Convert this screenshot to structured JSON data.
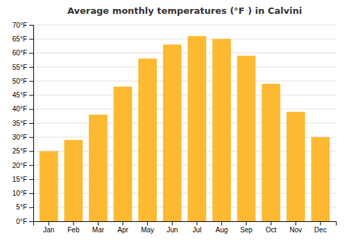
{
  "chart_data": {
    "type": "bar",
    "title": "Average monthly temperatures (°F ) in Calvini",
    "categories": [
      "Jan",
      "Feb",
      "Mar",
      "Apr",
      "May",
      "Jun",
      "Jul",
      "Aug",
      "Sep",
      "Oct",
      "Nov",
      "Dec"
    ],
    "values": [
      25,
      29,
      38,
      48,
      58,
      63,
      66,
      65,
      59,
      49,
      39,
      30
    ],
    "color": "#FDB931",
    "ylim": [
      0,
      70
    ],
    "yticks": [
      {
        "value": 0,
        "label": "0°F"
      },
      {
        "value": 5,
        "label": "5°F"
      },
      {
        "value": 10,
        "label": "10°F"
      },
      {
        "value": 15,
        "label": "15°F"
      },
      {
        "value": 20,
        "label": "20°F"
      },
      {
        "value": 25,
        "label": "25°F"
      },
      {
        "value": 30,
        "label": "30°F"
      },
      {
        "value": 35,
        "label": "35°F"
      },
      {
        "value": 40,
        "label": "40°F"
      },
      {
        "value": 45,
        "label": "45°F"
      },
      {
        "value": 50,
        "label": "50°F"
      },
      {
        "value": 55,
        "label": "55°F"
      },
      {
        "value": 60,
        "label": "60°F"
      },
      {
        "value": 65,
        "label": "65°F"
      },
      {
        "value": 70,
        "label": "70°F"
      }
    ],
    "grid": true
  }
}
